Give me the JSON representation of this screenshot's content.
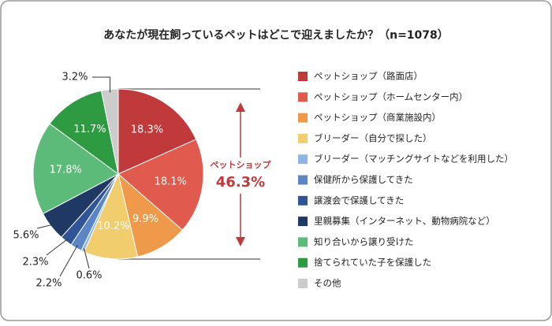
{
  "chart_data": {
    "type": "pie",
    "title": "あなたが現在飼っているペットはどこで迎えましたか？（n=1078）",
    "categories": [
      "ペットショップ（路面店）",
      "ペットショップ（ホームセンター内）",
      "ペットショップ（商業施設内）",
      "ブリーダー（自分で探した）",
      "ブリーダー（マッチングサイトなどを利用した）",
      "保健所から保護してきた",
      "譲渡会で保護してきた",
      "里親募集（インターネット、動物病院など）",
      "知り合いから譲り受けた",
      "捨てられていた子を保護した",
      "その他"
    ],
    "values": [
      18.3,
      18.1,
      9.9,
      10.2,
      0.6,
      2.2,
      2.3,
      5.6,
      17.8,
      11.7,
      3.2
    ],
    "value_labels": [
      "18.3%",
      "18.1%",
      "9.9%",
      "10.2%",
      "0.6%",
      "2.2%",
      "2.3%",
      "5.6%",
      "17.8%",
      "11.7%",
      "3.2%"
    ],
    "colors": [
      "#c0393b",
      "#e05a4e",
      "#ef9a4a",
      "#f2cd6e",
      "#8fb6e0",
      "#5b86c5",
      "#2f5597",
      "#1f3864",
      "#5dbb7a",
      "#2e9a42",
      "#cccccc"
    ],
    "annotation": {
      "text": "ペットショップ",
      "value_label": "46.3%",
      "color": "#c0393b"
    }
  }
}
